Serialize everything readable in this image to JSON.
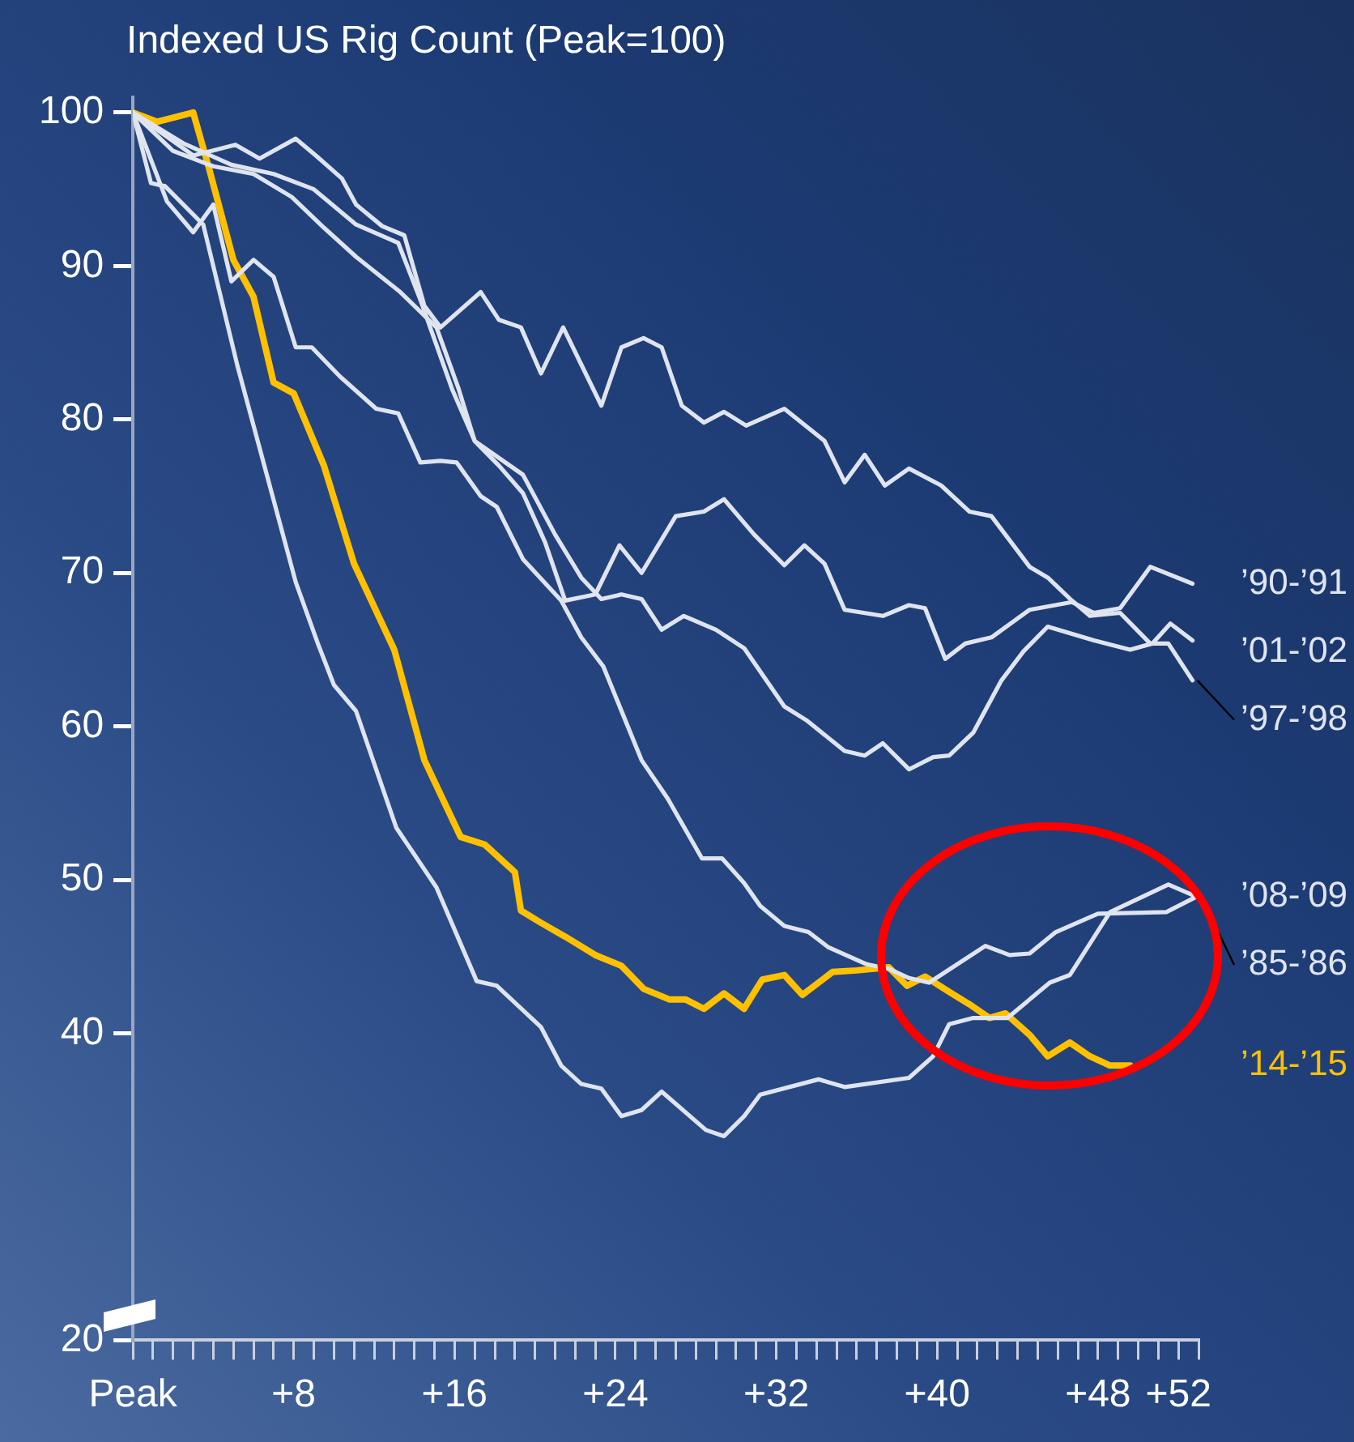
{
  "chart_data": {
    "type": "line",
    "title": "Indexed US Rig Count (Peak=100)",
    "xlim": [
      0,
      53
    ],
    "xticks": [
      {
        "value": 0,
        "label": "Peak"
      },
      {
        "value": 1,
        "label": null
      },
      {
        "value": 2,
        "label": null
      },
      {
        "value": 3,
        "label": null
      },
      {
        "value": 4,
        "label": null
      },
      {
        "value": 5,
        "label": null
      },
      {
        "value": 6,
        "label": null
      },
      {
        "value": 7,
        "label": null
      },
      {
        "value": 8,
        "label": "+8"
      },
      {
        "value": 9,
        "label": null
      },
      {
        "value": 10,
        "label": null
      },
      {
        "value": 11,
        "label": null
      },
      {
        "value": 12,
        "label": null
      },
      {
        "value": 13,
        "label": null
      },
      {
        "value": 14,
        "label": null
      },
      {
        "value": 15,
        "label": null
      },
      {
        "value": 16,
        "label": "+16"
      },
      {
        "value": 17,
        "label": null
      },
      {
        "value": 18,
        "label": null
      },
      {
        "value": 19,
        "label": null
      },
      {
        "value": 20,
        "label": null
      },
      {
        "value": 21,
        "label": null
      },
      {
        "value": 22,
        "label": null
      },
      {
        "value": 23,
        "label": null
      },
      {
        "value": 24,
        "label": "+24"
      },
      {
        "value": 25,
        "label": null
      },
      {
        "value": 26,
        "label": null
      },
      {
        "value": 27,
        "label": null
      },
      {
        "value": 28,
        "label": null
      },
      {
        "value": 29,
        "label": null
      },
      {
        "value": 30,
        "label": null
      },
      {
        "value": 31,
        "label": null
      },
      {
        "value": 32,
        "label": "+32"
      },
      {
        "value": 33,
        "label": null
      },
      {
        "value": 34,
        "label": null
      },
      {
        "value": 35,
        "label": null
      },
      {
        "value": 36,
        "label": null
      },
      {
        "value": 37,
        "label": null
      },
      {
        "value": 38,
        "label": null
      },
      {
        "value": 39,
        "label": null
      },
      {
        "value": 40,
        "label": "+40"
      },
      {
        "value": 41,
        "label": null
      },
      {
        "value": 42,
        "label": null
      },
      {
        "value": 43,
        "label": null
      },
      {
        "value": 44,
        "label": null
      },
      {
        "value": 45,
        "label": null
      },
      {
        "value": 46,
        "label": null
      },
      {
        "value": 47,
        "label": null
      },
      {
        "value": 48,
        "label": "+48"
      },
      {
        "value": 49,
        "label": null
      },
      {
        "value": 50,
        "label": null
      },
      {
        "value": 51,
        "label": null
      },
      {
        "value": 52,
        "label": "+52"
      },
      {
        "value": 53,
        "label": null
      }
    ],
    "ylim": [
      20,
      101
    ],
    "yticks": [
      20,
      40,
      50,
      60,
      70,
      80,
      90,
      100
    ],
    "grid": false,
    "legend": false,
    "marker": "none",
    "line_style": "solid",
    "series": [
      {
        "name": "’90-’91",
        "color": "#dfe4ee",
        "x": [
          0,
          2,
          4,
          6,
          7.9,
          9.5,
          11.1,
          13.3,
          15.1,
          16.2,
          17,
          18.2,
          19.4,
          20.5,
          21.5,
          23,
          24.2,
          25.3,
          27,
          28.4,
          29.4,
          30.9,
          32.4,
          33.4,
          34.4,
          35.4,
          37.3,
          38.6,
          39.4,
          40.4,
          41.4,
          42.7,
          44.6,
          46.7,
          47.8,
          49.1,
          50.6,
          52.7
        ],
        "values": [
          100,
          97.5,
          96.5,
          96,
          94.5,
          92.5,
          90.6,
          88.3,
          86,
          82,
          78.6,
          77,
          75.2,
          72,
          68.2,
          68.6,
          71.8,
          70,
          73.7,
          74,
          74.8,
          72.5,
          70.5,
          71.8,
          70.6,
          67.6,
          67.2,
          67.9,
          67.7,
          64.4,
          65.4,
          65.8,
          67.6,
          68.1,
          67.4,
          67.7,
          70.4,
          69.3
        ]
      },
      {
        "name": "’01-’02",
        "color": "#dfe4ee",
        "x": [
          0,
          2.5,
          4.9,
          7,
          9,
          11.1,
          13.2,
          14.3,
          15.9,
          17,
          19.4,
          21,
          22.3,
          23.3,
          24.3,
          25.3,
          26.3,
          27.4,
          29,
          30.4,
          32.4,
          33.5,
          35.4,
          36.4,
          37.3,
          38.6,
          39.8,
          40.6,
          41.8,
          43.2,
          44.3,
          45.5,
          47.8,
          49.6,
          50.7,
          51.6,
          52.7
        ],
        "values": [
          100,
          98,
          96.6,
          96,
          95,
          92.7,
          91.5,
          87.8,
          81.9,
          78.6,
          76.4,
          72.5,
          69.7,
          68.3,
          68.6,
          68.3,
          66.3,
          67.2,
          66.3,
          65.1,
          61.3,
          60.4,
          58.4,
          58.1,
          58.9,
          57.2,
          58,
          58.1,
          59.6,
          63,
          64.9,
          66.5,
          65.6,
          65,
          65.4,
          66.7,
          65.6
        ]
      },
      {
        "name": "’97-’98",
        "color": "#dfe4ee",
        "x": [
          0,
          3,
          5.1,
          6.3,
          8.1,
          9.1,
          10.4,
          11.1,
          12.4,
          13.5,
          14.5,
          15.3,
          17.3,
          18.2,
          19.3,
          20.3,
          21.4,
          23.3,
          24.3,
          25.4,
          26.3,
          27.3,
          28.4,
          29.4,
          30.5,
          32.4,
          34.4,
          35.4,
          36.4,
          37.4,
          38.6,
          40.2,
          41.6,
          42.7,
          44.6,
          45.5,
          46.7,
          47.6,
          49.1,
          50.6,
          51.5,
          52.7
        ],
        "values": [
          100,
          97.2,
          97.9,
          97,
          98.3,
          97.2,
          95.7,
          94,
          92.6,
          92,
          87.4,
          86,
          88.3,
          86.5,
          86,
          83,
          86,
          80.9,
          84.7,
          85.3,
          84.7,
          80.9,
          79.8,
          80.5,
          79.6,
          80.7,
          78.6,
          75.9,
          77.7,
          75.7,
          76.8,
          75.7,
          74,
          73.7,
          70.4,
          69.7,
          68.2,
          67.2,
          67.4,
          65.4,
          65.4,
          63
        ]
      },
      {
        "name": "’08-’09",
        "color": "#dfe4ee",
        "x": [
          0,
          0.9,
          1.6,
          3.5,
          5.2,
          8.1,
          9.2,
          10,
          11.1,
          13.1,
          15.1,
          17.1,
          18.1,
          20.3,
          21.3,
          22.3,
          23.3,
          24.3,
          25.3,
          26.3,
          28.5,
          29.4,
          30.4,
          31.2,
          34.1,
          35.4,
          38.6,
          39.8,
          40.6,
          41.8,
          43.5,
          45.6,
          46.6,
          48.6,
          51.5,
          52.9
        ],
        "values": [
          100,
          95.4,
          95.2,
          92.7,
          83.5,
          69.4,
          65.4,
          62.7,
          61,
          53.4,
          49.5,
          43.4,
          43.1,
          40.4,
          37.9,
          36.7,
          36.4,
          34.6,
          35,
          36.2,
          33.7,
          33.3,
          34.6,
          36,
          37,
          36.5,
          37.1,
          38.5,
          40.6,
          41,
          41,
          43.3,
          43.8,
          47.9,
          49.7,
          48.9
        ]
      },
      {
        "name": "’85-’86",
        "color": "#dfe4ee",
        "x": [
          0,
          1.7,
          3,
          4,
          4.9,
          6,
          7,
          8.1,
          8.9,
          10.3,
          12.1,
          13.2,
          14.3,
          15.3,
          16.1,
          17.3,
          18.1,
          19.4,
          21.3,
          22.3,
          23.4,
          25.3,
          26.6,
          28.3,
          29.3,
          30.4,
          31.2,
          32.4,
          33.6,
          34.6,
          36.5,
          37.6,
          38.6,
          39.6,
          42.4,
          43.6,
          44.6,
          45.9,
          48,
          51.4,
          52.9
        ],
        "values": [
          100,
          94.2,
          92.2,
          94,
          89,
          90.4,
          89.3,
          84.7,
          84.7,
          82.8,
          80.7,
          80.4,
          77.2,
          77.3,
          77.2,
          75,
          74.3,
          70.9,
          68.2,
          65.8,
          63.9,
          57.8,
          55.3,
          51.4,
          51.4,
          49.8,
          48.3,
          47,
          46.6,
          45.6,
          44.5,
          44.2,
          43.6,
          43.3,
          45.7,
          45.1,
          45.2,
          46.6,
          47.8,
          47.9,
          48.9
        ]
      },
      {
        "name": "’14-’15",
        "color": "#ffc000",
        "x": [
          0,
          1.2,
          3,
          3.8,
          5,
          6,
          7,
          8,
          9.5,
          11,
          13,
          14.5,
          16.3,
          17.5,
          19,
          19.3,
          20.3,
          21.5,
          23,
          24.3,
          25.4,
          26.7,
          27.5,
          28.4,
          29.4,
          30.4,
          31.3,
          32.4,
          33.3,
          34.8,
          36,
          37.6,
          38.5,
          39.4,
          40.6,
          41.6,
          42.6,
          43.4,
          44.6,
          45.5,
          46.6,
          47.6,
          48.6,
          49.6
        ],
        "values": [
          100,
          99.4,
          100,
          96.3,
          90.4,
          88,
          82.4,
          81.7,
          77,
          70.6,
          65,
          57.8,
          52.8,
          52.3,
          50.5,
          48,
          47.2,
          46.3,
          45.1,
          44.4,
          42.9,
          42.2,
          42.2,
          41.6,
          42.6,
          41.6,
          43.5,
          43.8,
          42.5,
          44,
          44.1,
          44.3,
          43.1,
          43.7,
          42.7,
          41.9,
          41,
          41.3,
          39.9,
          38.5,
          39.4,
          38.5,
          37.9,
          37.9
        ]
      }
    ]
  }
}
